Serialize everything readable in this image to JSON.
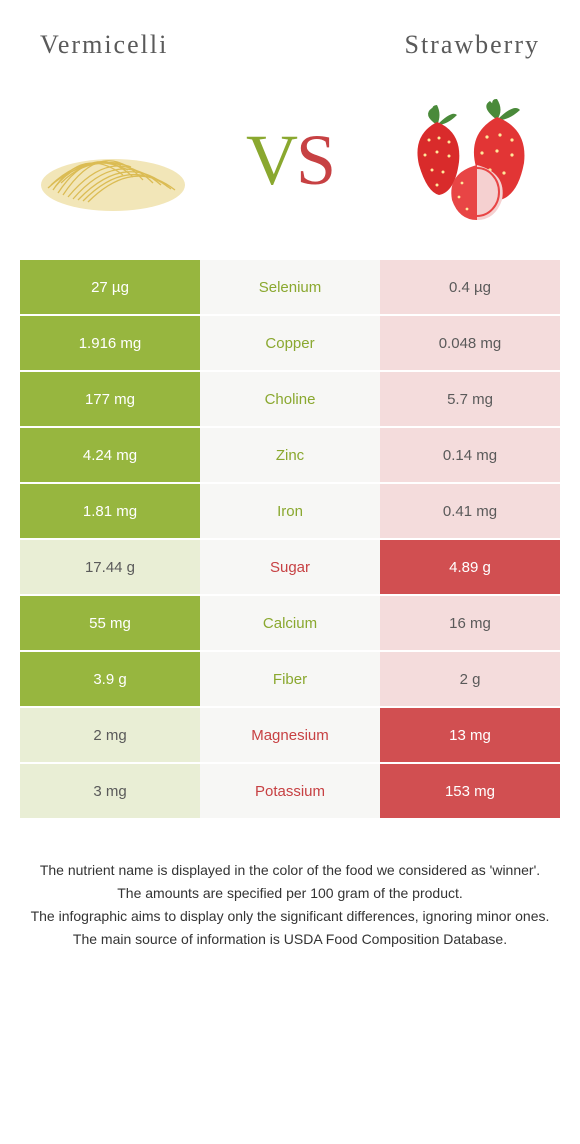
{
  "header": {
    "left_title": "Vermicelli",
    "right_title": "Strawberry"
  },
  "vs": {
    "v": "V",
    "s": "S"
  },
  "colors": {
    "green_dark": "#97b63f",
    "green_text": "#8aa82f",
    "green_light": "#e9eed5",
    "red_dark": "#d14f51",
    "red_text": "#c74143",
    "red_light": "#f4dcdc",
    "mid_bg": "#f7f7f5"
  },
  "rows": [
    {
      "nutrient": "Selenium",
      "left": "27 µg",
      "right": "0.4 µg",
      "winner": "left"
    },
    {
      "nutrient": "Copper",
      "left": "1.916 mg",
      "right": "0.048 mg",
      "winner": "left"
    },
    {
      "nutrient": "Choline",
      "left": "177 mg",
      "right": "5.7 mg",
      "winner": "left"
    },
    {
      "nutrient": "Zinc",
      "left": "4.24 mg",
      "right": "0.14 mg",
      "winner": "left"
    },
    {
      "nutrient": "Iron",
      "left": "1.81 mg",
      "right": "0.41 mg",
      "winner": "left"
    },
    {
      "nutrient": "Sugar",
      "left": "17.44 g",
      "right": "4.89 g",
      "winner": "right"
    },
    {
      "nutrient": "Calcium",
      "left": "55 mg",
      "right": "16 mg",
      "winner": "left"
    },
    {
      "nutrient": "Fiber",
      "left": "3.9 g",
      "right": "2 g",
      "winner": "left"
    },
    {
      "nutrient": "Magnesium",
      "left": "2 mg",
      "right": "13 mg",
      "winner": "right"
    },
    {
      "nutrient": "Potassium",
      "left": "3 mg",
      "right": "153 mg",
      "winner": "right"
    }
  ],
  "footer": {
    "line1": "The nutrient name is displayed in the color of the food we considered as 'winner'.",
    "line2": "The amounts are specified per 100 gram of the product.",
    "line3": "The infographic aims to display only the significant differences, ignoring minor ones.",
    "line4": "The main source of information is USDA Food Composition Database."
  }
}
